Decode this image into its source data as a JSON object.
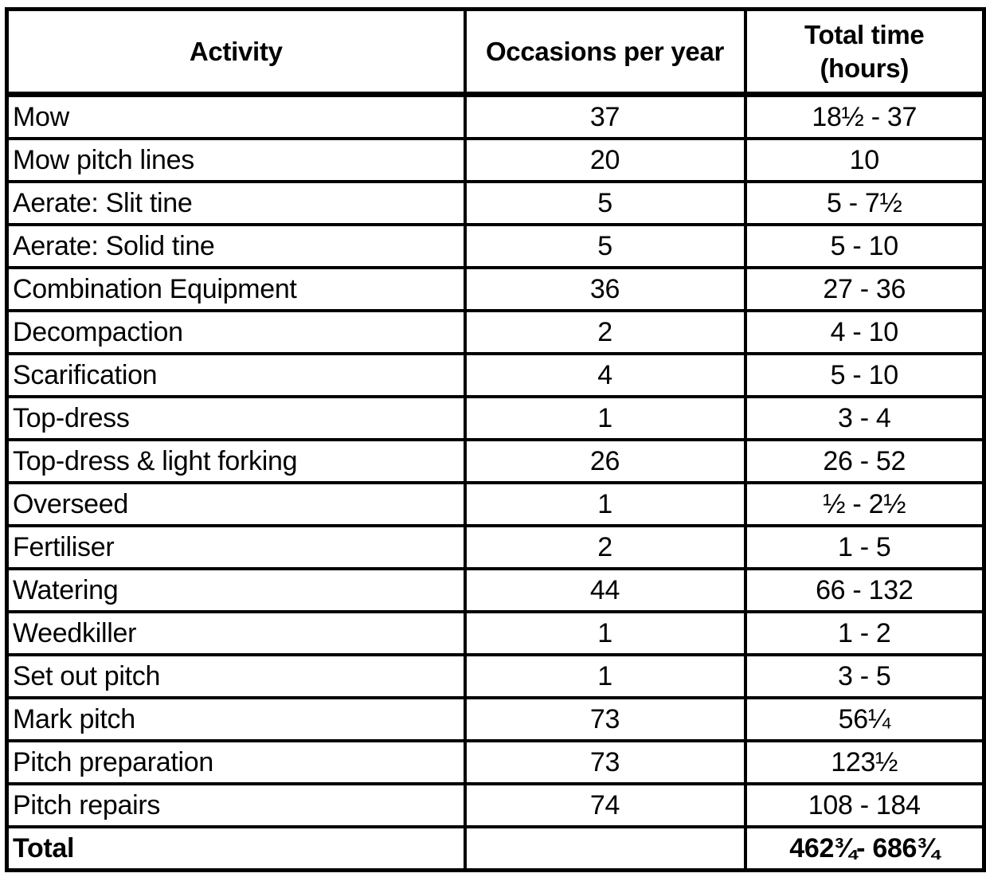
{
  "header": {
    "activity": "Activity",
    "occasions": "Occasions per year",
    "total_time_line1": "Total time",
    "total_time_line2": "(hours)"
  },
  "rows": [
    {
      "activity": "Mow",
      "occasions": "37",
      "total_time": "18½ - 37"
    },
    {
      "activity": "Mow pitch lines",
      "occasions": "20",
      "total_time": "10"
    },
    {
      "activity": "Aerate: Slit tine",
      "occasions": "5",
      "total_time": "5 - 7½"
    },
    {
      "activity": "Aerate: Solid tine",
      "occasions": "5",
      "total_time": "5 - 10"
    },
    {
      "activity": "Combination Equipment",
      "occasions": "36",
      "total_time": "27 - 36"
    },
    {
      "activity": "Decompaction",
      "occasions": "2",
      "total_time": "4 - 10"
    },
    {
      "activity": "Scarification",
      "occasions": "4",
      "total_time": "5 - 10"
    },
    {
      "activity": "Top-dress",
      "occasions": "1",
      "total_time": "3 - 4"
    },
    {
      "activity": "Top-dress & light forking",
      "occasions": "26",
      "total_time": "26 - 52"
    },
    {
      "activity": "Overseed",
      "occasions": "1",
      "total_time": "½ - 2½"
    },
    {
      "activity": "Fertiliser",
      "occasions": "2",
      "total_time": "1 - 5"
    },
    {
      "activity": "Watering",
      "occasions": "44",
      "total_time": "66 - 132"
    },
    {
      "activity": "Weedkiller",
      "occasions": "1",
      "total_time": "1 - 2"
    },
    {
      "activity": "Set out pitch",
      "occasions": "1",
      "total_time": "3 - 5"
    },
    {
      "activity": "Mark pitch",
      "occasions": "73",
      "total_time": "56¼"
    },
    {
      "activity": "Pitch preparation",
      "occasions": "73",
      "total_time": "123½"
    },
    {
      "activity": "Pitch repairs",
      "occasions": "74",
      "total_time": "108 - 184"
    }
  ],
  "total_row": {
    "activity": "Total",
    "occasions": "",
    "total_time": "462¾- 686¾"
  },
  "colors": {
    "border": "#000000",
    "background": "#ffffff",
    "text": "#000000"
  }
}
